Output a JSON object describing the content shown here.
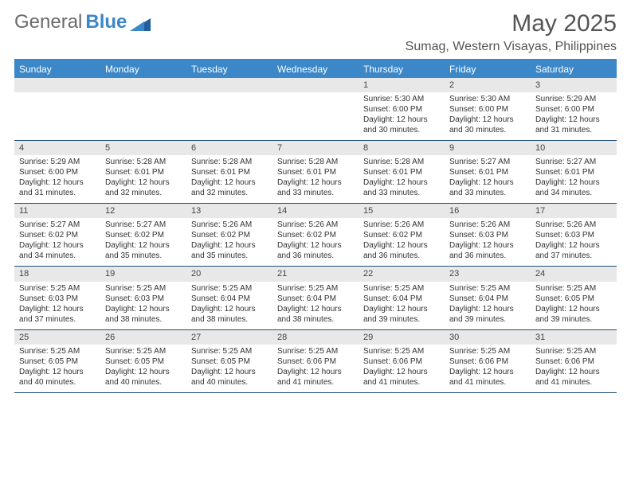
{
  "brand": {
    "part1": "General",
    "part2": "Blue"
  },
  "header": {
    "month": "May 2025",
    "location": "Sumag, Western Visayas, Philippines"
  },
  "colors": {
    "accent": "#3b87c8",
    "band": "#e8e8e8",
    "border": "#1f4e79",
    "text": "#333333"
  },
  "weekdays": [
    "Sunday",
    "Monday",
    "Tuesday",
    "Wednesday",
    "Thursday",
    "Friday",
    "Saturday"
  ],
  "layout": {
    "firstDayOffset": 4,
    "daysInMonth": 31,
    "cellFont": 10,
    "headerFont": 12
  },
  "days": [
    {
      "n": 1,
      "sunrise": "5:30 AM",
      "sunset": "6:00 PM",
      "daylight": "12 hours and 30 minutes."
    },
    {
      "n": 2,
      "sunrise": "5:30 AM",
      "sunset": "6:00 PM",
      "daylight": "12 hours and 30 minutes."
    },
    {
      "n": 3,
      "sunrise": "5:29 AM",
      "sunset": "6:00 PM",
      "daylight": "12 hours and 31 minutes."
    },
    {
      "n": 4,
      "sunrise": "5:29 AM",
      "sunset": "6:00 PM",
      "daylight": "12 hours and 31 minutes."
    },
    {
      "n": 5,
      "sunrise": "5:28 AM",
      "sunset": "6:01 PM",
      "daylight": "12 hours and 32 minutes."
    },
    {
      "n": 6,
      "sunrise": "5:28 AM",
      "sunset": "6:01 PM",
      "daylight": "12 hours and 32 minutes."
    },
    {
      "n": 7,
      "sunrise": "5:28 AM",
      "sunset": "6:01 PM",
      "daylight": "12 hours and 33 minutes."
    },
    {
      "n": 8,
      "sunrise": "5:28 AM",
      "sunset": "6:01 PM",
      "daylight": "12 hours and 33 minutes."
    },
    {
      "n": 9,
      "sunrise": "5:27 AM",
      "sunset": "6:01 PM",
      "daylight": "12 hours and 33 minutes."
    },
    {
      "n": 10,
      "sunrise": "5:27 AM",
      "sunset": "6:01 PM",
      "daylight": "12 hours and 34 minutes."
    },
    {
      "n": 11,
      "sunrise": "5:27 AM",
      "sunset": "6:02 PM",
      "daylight": "12 hours and 34 minutes."
    },
    {
      "n": 12,
      "sunrise": "5:27 AM",
      "sunset": "6:02 PM",
      "daylight": "12 hours and 35 minutes."
    },
    {
      "n": 13,
      "sunrise": "5:26 AM",
      "sunset": "6:02 PM",
      "daylight": "12 hours and 35 minutes."
    },
    {
      "n": 14,
      "sunrise": "5:26 AM",
      "sunset": "6:02 PM",
      "daylight": "12 hours and 36 minutes."
    },
    {
      "n": 15,
      "sunrise": "5:26 AM",
      "sunset": "6:02 PM",
      "daylight": "12 hours and 36 minutes."
    },
    {
      "n": 16,
      "sunrise": "5:26 AM",
      "sunset": "6:03 PM",
      "daylight": "12 hours and 36 minutes."
    },
    {
      "n": 17,
      "sunrise": "5:26 AM",
      "sunset": "6:03 PM",
      "daylight": "12 hours and 37 minutes."
    },
    {
      "n": 18,
      "sunrise": "5:25 AM",
      "sunset": "6:03 PM",
      "daylight": "12 hours and 37 minutes."
    },
    {
      "n": 19,
      "sunrise": "5:25 AM",
      "sunset": "6:03 PM",
      "daylight": "12 hours and 38 minutes."
    },
    {
      "n": 20,
      "sunrise": "5:25 AM",
      "sunset": "6:04 PM",
      "daylight": "12 hours and 38 minutes."
    },
    {
      "n": 21,
      "sunrise": "5:25 AM",
      "sunset": "6:04 PM",
      "daylight": "12 hours and 38 minutes."
    },
    {
      "n": 22,
      "sunrise": "5:25 AM",
      "sunset": "6:04 PM",
      "daylight": "12 hours and 39 minutes."
    },
    {
      "n": 23,
      "sunrise": "5:25 AM",
      "sunset": "6:04 PM",
      "daylight": "12 hours and 39 minutes."
    },
    {
      "n": 24,
      "sunrise": "5:25 AM",
      "sunset": "6:05 PM",
      "daylight": "12 hours and 39 minutes."
    },
    {
      "n": 25,
      "sunrise": "5:25 AM",
      "sunset": "6:05 PM",
      "daylight": "12 hours and 40 minutes."
    },
    {
      "n": 26,
      "sunrise": "5:25 AM",
      "sunset": "6:05 PM",
      "daylight": "12 hours and 40 minutes."
    },
    {
      "n": 27,
      "sunrise": "5:25 AM",
      "sunset": "6:05 PM",
      "daylight": "12 hours and 40 minutes."
    },
    {
      "n": 28,
      "sunrise": "5:25 AM",
      "sunset": "6:06 PM",
      "daylight": "12 hours and 41 minutes."
    },
    {
      "n": 29,
      "sunrise": "5:25 AM",
      "sunset": "6:06 PM",
      "daylight": "12 hours and 41 minutes."
    },
    {
      "n": 30,
      "sunrise": "5:25 AM",
      "sunset": "6:06 PM",
      "daylight": "12 hours and 41 minutes."
    },
    {
      "n": 31,
      "sunrise": "5:25 AM",
      "sunset": "6:06 PM",
      "daylight": "12 hours and 41 minutes."
    }
  ],
  "labels": {
    "sunrise": "Sunrise:",
    "sunset": "Sunset:",
    "daylight": "Daylight:"
  }
}
